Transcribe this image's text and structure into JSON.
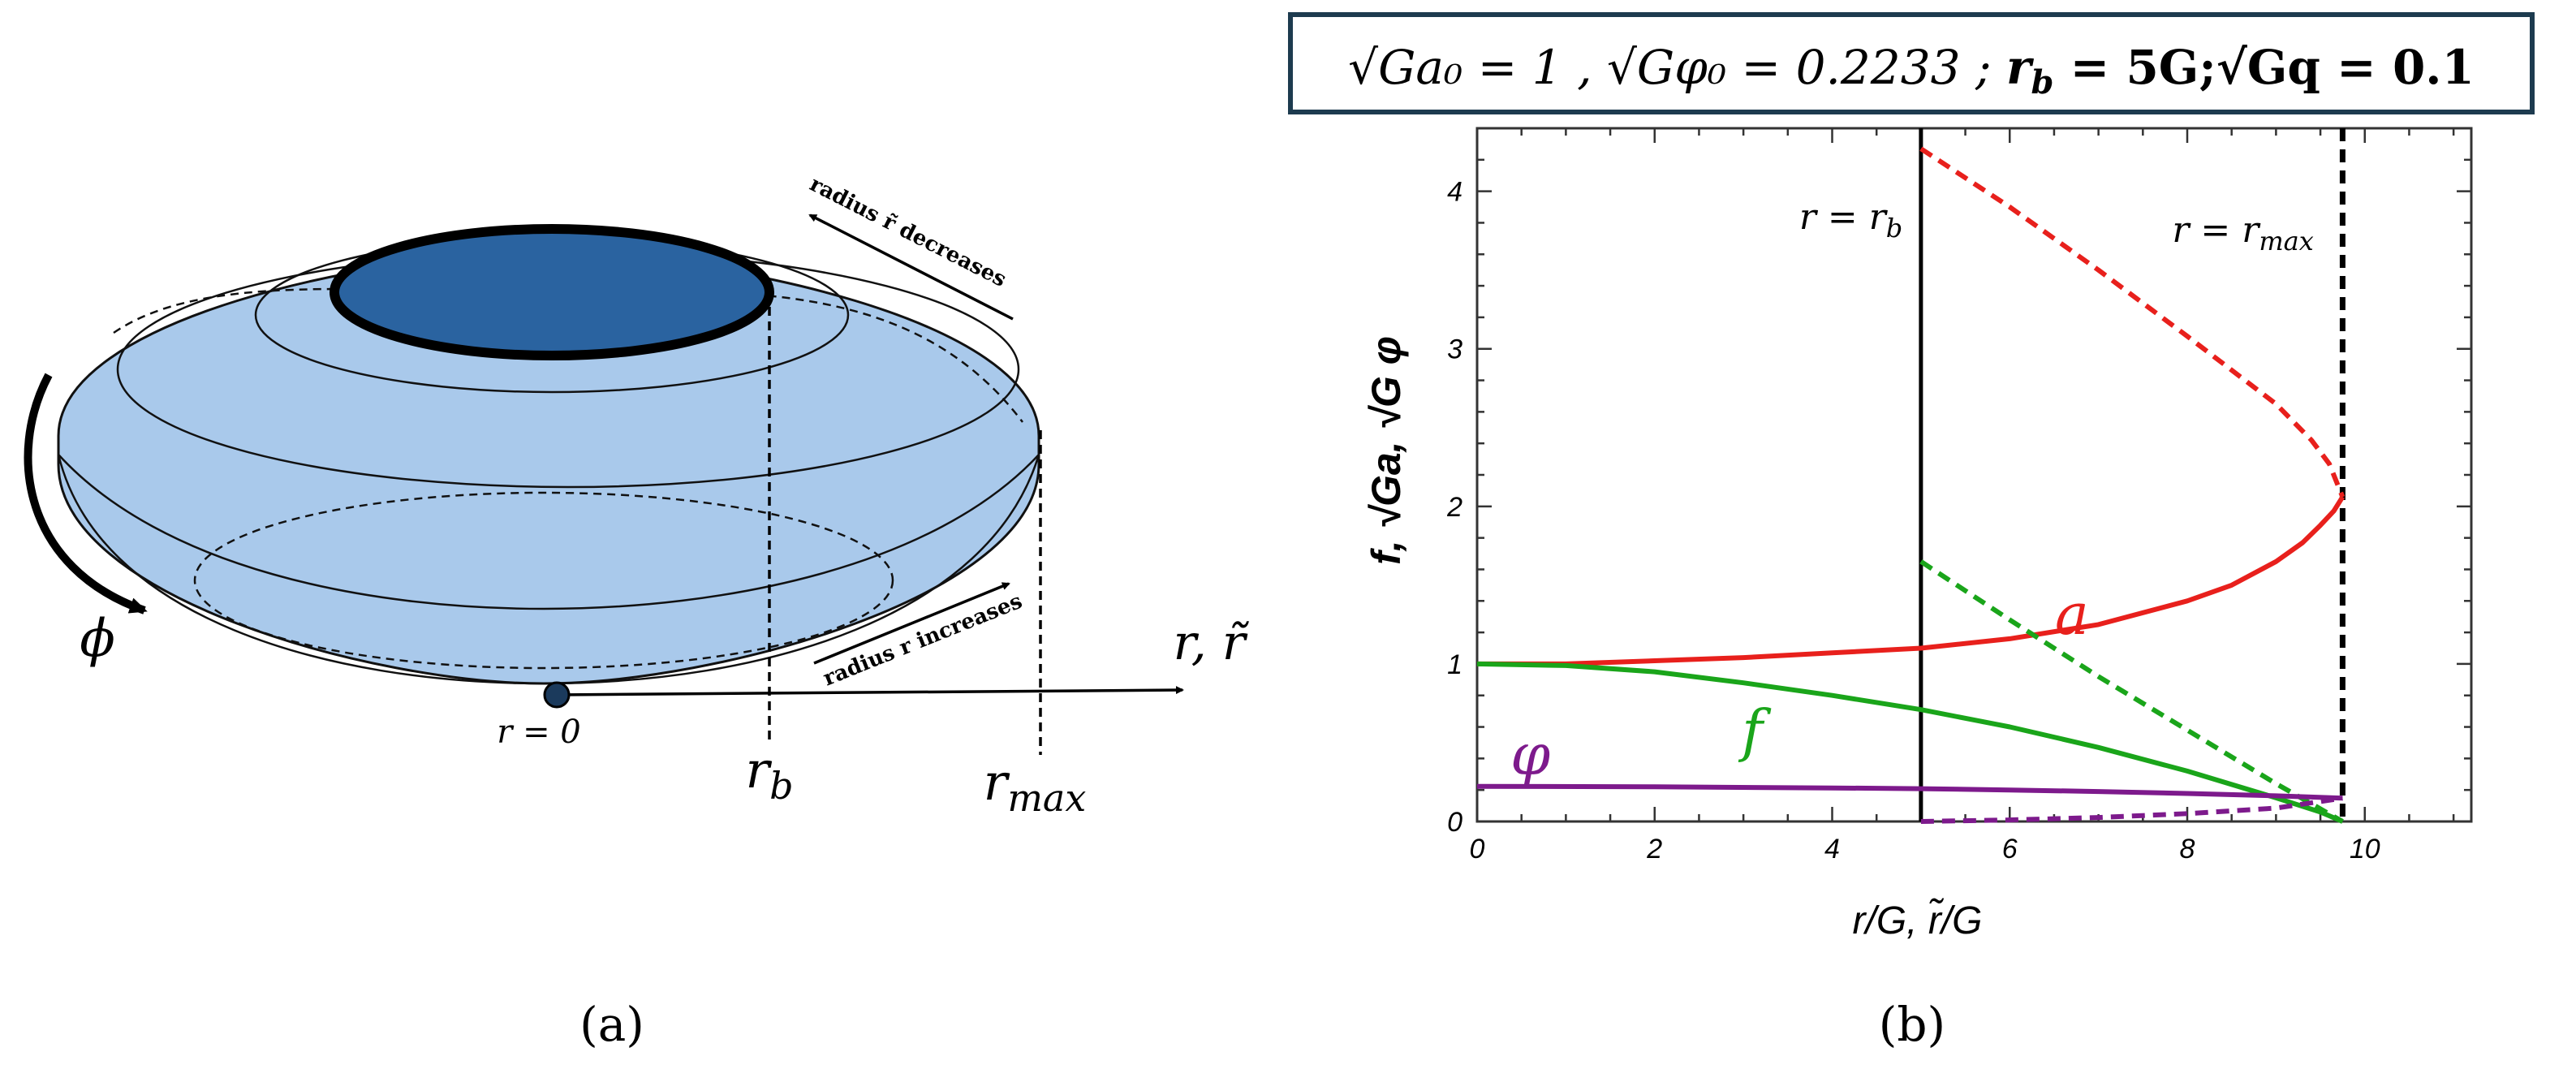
{
  "panel_a": {
    "caption": "(a)",
    "label_phi": "ϕ",
    "label_axis": "r, r̃",
    "label_r0": "r = 0",
    "label_rb": "r",
    "label_rb_sub": "b",
    "label_rmax": "r",
    "label_rmax_sub": "max",
    "note_decreases": "radius r̃ decreases",
    "note_increases": "radius r increases",
    "colors": {
      "disk_light": "#a9c9eb",
      "disk_dark": "#2a63a0"
    }
  },
  "panel_b": {
    "caption": "(b)",
    "header": {
      "part1": "√Ga₀ = 1 , √Gφ₀ = 0.2233 ; ",
      "part2": "r",
      "part2_sub": "b",
      "part3": " = 5G;",
      "part4": "√Gq = 0.1"
    },
    "label_rb_line": "r = r",
    "label_rb_line_sub": "b",
    "label_rmax_line": "r = r",
    "label_rmax_line_sub": "max"
  },
  "chart_data": {
    "type": "line",
    "xlabel": "r/G,   r̃/G",
    "ylabel": "f, √Ga, √G φ",
    "xlim": [
      0,
      11.2
    ],
    "ylim": [
      0,
      4.4
    ],
    "x_ticks": [
      0,
      2,
      4,
      6,
      8,
      10
    ],
    "y_ticks": [
      0,
      1,
      2,
      3,
      4
    ],
    "vlines": [
      {
        "x": 5,
        "style": "solid"
      },
      {
        "x": 9.75,
        "style": "dashed"
      }
    ],
    "series": [
      {
        "name": "a",
        "style": "solid",
        "color": "#e8201c",
        "x": [
          0,
          1,
          2,
          3,
          4,
          5,
          6,
          7,
          8,
          8.5,
          9,
          9.3,
          9.5,
          9.65,
          9.75
        ],
        "y": [
          1.0,
          1.0,
          1.02,
          1.04,
          1.07,
          1.1,
          1.16,
          1.25,
          1.4,
          1.5,
          1.65,
          1.77,
          1.88,
          1.97,
          2.06
        ]
      },
      {
        "style": "dashed",
        "color": "#e8201c",
        "x": [
          5,
          6,
          7,
          8,
          9,
          9.4,
          9.6,
          9.75
        ],
        "y": [
          4.27,
          3.9,
          3.5,
          3.08,
          2.65,
          2.42,
          2.27,
          2.06
        ]
      },
      {
        "name": "f",
        "style": "solid",
        "color": "#1aa51a",
        "x": [
          0,
          1,
          2,
          3,
          4,
          5,
          6,
          7,
          8,
          9,
          9.5,
          9.75
        ],
        "y": [
          1.0,
          0.99,
          0.95,
          0.88,
          0.8,
          0.71,
          0.6,
          0.47,
          0.32,
          0.15,
          0.06,
          0.0
        ]
      },
      {
        "style": "dashed",
        "color": "#1aa51a",
        "x": [
          5,
          6,
          7,
          8,
          9,
          9.75
        ],
        "y": [
          1.65,
          1.28,
          0.92,
          0.58,
          0.24,
          0.0
        ]
      },
      {
        "name": "φ",
        "style": "solid",
        "color": "#7d1a8c",
        "x": [
          0,
          2,
          4,
          5,
          6,
          7,
          8,
          9,
          9.75
        ],
        "y": [
          0.223,
          0.22,
          0.213,
          0.208,
          0.2,
          0.19,
          0.178,
          0.163,
          0.148
        ]
      },
      {
        "style": "dashed",
        "color": "#7d1a8c",
        "x": [
          5,
          6,
          7,
          8,
          9,
          9.75
        ],
        "y": [
          0.0,
          0.01,
          0.025,
          0.05,
          0.085,
          0.148
        ]
      }
    ]
  }
}
